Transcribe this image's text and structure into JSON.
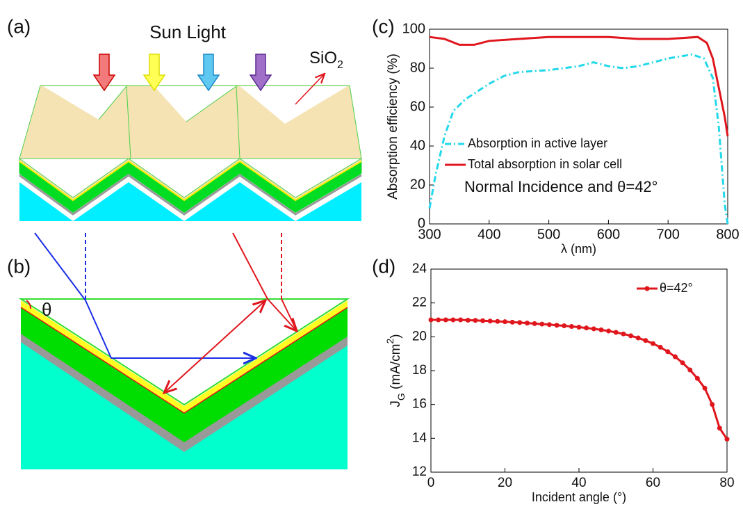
{
  "diagram": {
    "panel_labels": [
      "(a)",
      "(b)",
      "(c)",
      "(d)"
    ],
    "sun_light": "Sun Light",
    "sio2": [
      "SiO",
      "2"
    ],
    "theta": "θ"
  },
  "chart_data": [
    {
      "type": "line",
      "xlabel": "λ (nm)",
      "ylabel": "Absorption efficiency (%)",
      "xlim": [
        300,
        800
      ],
      "xticks": [
        300,
        400,
        500,
        600,
        700,
        800
      ],
      "ylim": [
        0,
        100
      ],
      "yticks": [
        0,
        20,
        40,
        60,
        80,
        100
      ],
      "legend": "center left",
      "annotation": "Normal Incidence and θ=42°",
      "series": [
        {
          "name": "Absorption in active layer",
          "color": "#22d8ea",
          "style": "dashdot",
          "x": [
            300,
            310,
            325,
            340,
            360,
            380,
            400,
            425,
            450,
            500,
            550,
            575,
            600,
            625,
            650,
            700,
            740,
            760,
            775,
            785,
            795,
            800
          ],
          "values": [
            8,
            25,
            45,
            58,
            64,
            68,
            72,
            76,
            78,
            79,
            81,
            83,
            81,
            80,
            81,
            85,
            87,
            85,
            75,
            50,
            10,
            0
          ]
        },
        {
          "name": "Total absorption in solar cell",
          "color": "#e0161d",
          "style": "solid",
          "x": [
            300,
            325,
            350,
            375,
            400,
            450,
            500,
            550,
            600,
            650,
            700,
            750,
            765,
            775,
            785,
            795,
            800
          ],
          "values": [
            96,
            95,
            92,
            92,
            94,
            95,
            96,
            96,
            96,
            95,
            95,
            96,
            93,
            85,
            70,
            55,
            45
          ]
        }
      ]
    },
    {
      "type": "line",
      "xlabel": "Incident angle (°)",
      "ylabel": [
        "J",
        "G",
        " (mA/cm",
        "2",
        ")"
      ],
      "xlim": [
        0,
        80
      ],
      "xticks": [
        0,
        20,
        40,
        60,
        80
      ],
      "ylim": [
        12,
        24
      ],
      "yticks": [
        12,
        14,
        16,
        18,
        20,
        22,
        24
      ],
      "legend": "upper right",
      "series": [
        {
          "name": "θ=42°",
          "color": "#e0161d",
          "style": "solid",
          "marker": "o",
          "x": [
            0,
            2,
            4,
            6,
            8,
            10,
            12,
            14,
            16,
            18,
            20,
            22,
            24,
            26,
            28,
            30,
            32,
            34,
            36,
            38,
            40,
            42,
            44,
            46,
            48,
            50,
            52,
            54,
            56,
            58,
            60,
            62,
            64,
            66,
            68,
            70,
            72,
            74,
            76,
            78,
            80
          ],
          "values": [
            21.0,
            21.0,
            21.0,
            21.0,
            21.0,
            20.98,
            20.97,
            20.95,
            20.93,
            20.91,
            20.89,
            20.86,
            20.84,
            20.81,
            20.78,
            20.75,
            20.72,
            20.68,
            20.65,
            20.61,
            20.57,
            20.52,
            20.47,
            20.41,
            20.34,
            20.26,
            20.17,
            20.06,
            19.93,
            19.78,
            19.6,
            19.38,
            19.12,
            18.82,
            18.46,
            18.04,
            17.54,
            16.96,
            16.0,
            14.6,
            13.95
          ]
        }
      ]
    }
  ]
}
